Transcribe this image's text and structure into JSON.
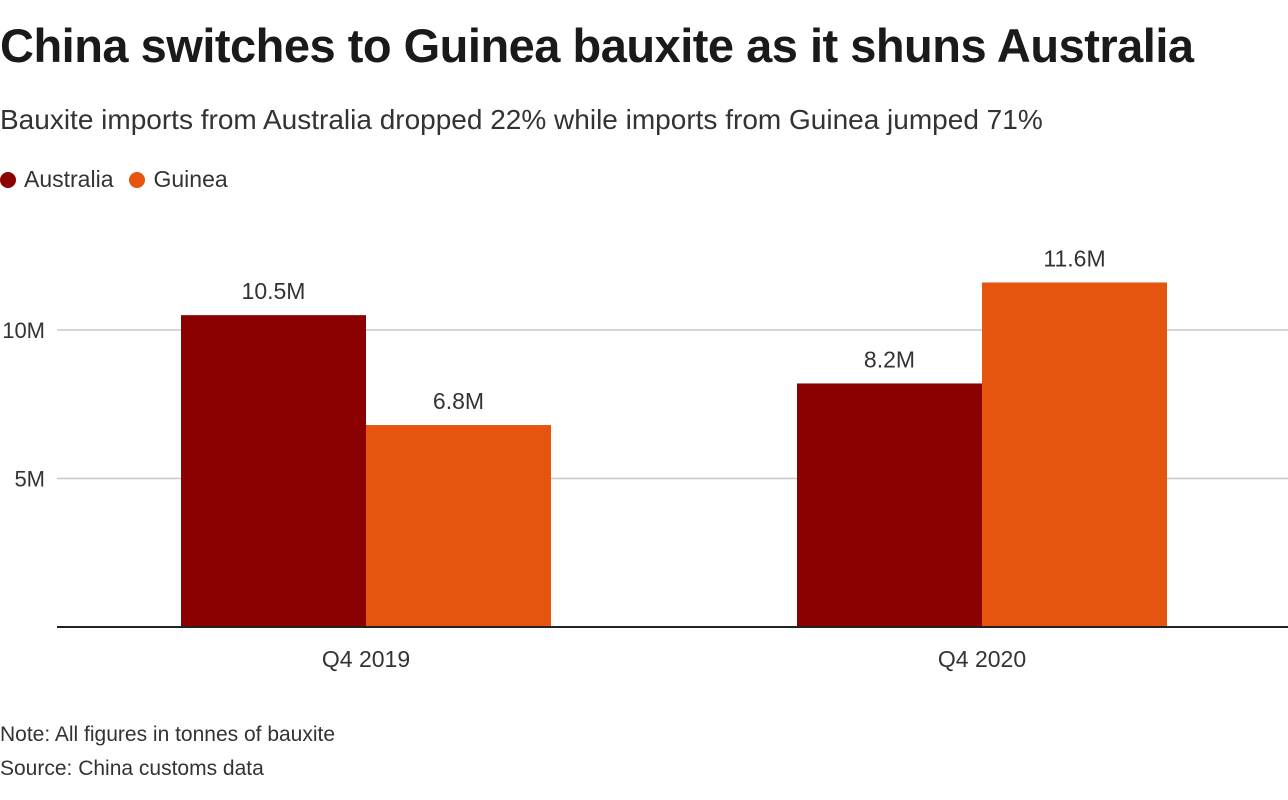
{
  "header": {
    "title": "China switches to Guinea bauxite as it shuns Australia",
    "subtitle": "Bauxite imports from Australia dropped 22% while imports from Guinea jumped 71%"
  },
  "legend": [
    {
      "label": "Australia",
      "color": "#8b0000"
    },
    {
      "label": "Guinea",
      "color": "#e55510"
    }
  ],
  "chart_data": {
    "type": "bar",
    "categories": [
      "Q4 2019",
      "Q4 2020"
    ],
    "series": [
      {
        "name": "Australia",
        "color": "#8b0000",
        "values": [
          10.5,
          8.2
        ],
        "labels": [
          "10.5M",
          "8.2M"
        ]
      },
      {
        "name": "Guinea",
        "color": "#e55510",
        "values": [
          6.8,
          11.6
        ],
        "labels": [
          "6.8M",
          "11.6M"
        ]
      }
    ],
    "yticks": [
      5,
      10
    ],
    "ytick_labels": [
      "5M",
      "10M"
    ],
    "ylim": [
      0,
      14
    ],
    "grid": true,
    "legend_position": "top-left"
  },
  "footer": {
    "note": "Note: All figures in tonnes of bauxite",
    "source": "Source: China customs data"
  }
}
